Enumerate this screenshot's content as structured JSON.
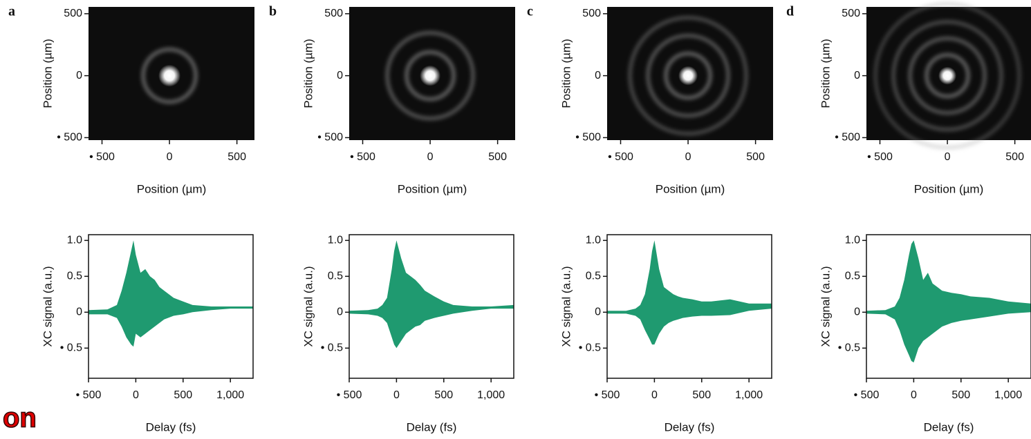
{
  "chart_data": [
    {
      "type": "image",
      "panel_label": "a",
      "xlabel": "Position (µm)",
      "ylabel": "Position (µm)",
      "xlim": [
        -600,
        630
      ],
      "ylim": [
        -520,
        555
      ],
      "xticks": [
        {
          "value": -500,
          "label": "• 500"
        },
        0,
        500
      ],
      "yticks": [
        {
          "value": -500,
          "label": "• 500"
        },
        0,
        500
      ]
    },
    {
      "type": "band",
      "xlabel": "Delay (fs)",
      "ylabel": "XC signal (a.u.)",
      "color": "#1f9a70",
      "xlim": [
        -500,
        1240
      ],
      "ylim": [
        -0.92,
        1.08
      ],
      "xticks": [
        {
          "value": -500,
          "label": "• 500"
        },
        0,
        500,
        {
          "value": 1000,
          "label": "1,000"
        }
      ],
      "yticks": [
        {
          "value": -0.5,
          "label": "• 0.5"
        },
        0,
        0.5,
        {
          "value": 1,
          "label": "1.0"
        }
      ],
      "x": [
        -500,
        -300,
        -200,
        -150,
        -100,
        -50,
        -25,
        0,
        50,
        100,
        150,
        200,
        250,
        300,
        400,
        500,
        600,
        800,
        1000,
        1240
      ],
      "upper": [
        0.03,
        0.04,
        0.1,
        0.3,
        0.55,
        0.85,
        1.0,
        0.8,
        0.55,
        0.6,
        0.5,
        0.45,
        0.35,
        0.3,
        0.2,
        0.15,
        0.1,
        0.08,
        0.08,
        0.08
      ],
      "lower": [
        -0.03,
        -0.03,
        -0.08,
        -0.2,
        -0.35,
        -0.45,
        -0.48,
        -0.3,
        -0.35,
        -0.3,
        -0.25,
        -0.2,
        -0.15,
        -0.1,
        -0.05,
        -0.03,
        0,
        0.03,
        0.05,
        0.05
      ]
    },
    {
      "type": "image",
      "panel_label": "b",
      "xlabel": "Position (µm)",
      "ylabel": "Position (µm)",
      "xlim": [
        -600,
        630
      ],
      "ylim": [
        -520,
        555
      ],
      "xticks": [
        {
          "value": -500,
          "label": "• 500"
        },
        0,
        500
      ],
      "yticks": [
        {
          "value": -500,
          "label": "• 500"
        },
        0,
        500
      ]
    },
    {
      "type": "band",
      "xlabel": "Delay (fs)",
      "ylabel": "XC signal (a.u.)",
      "color": "#1f9a70",
      "xlim": [
        -500,
        1240
      ],
      "ylim": [
        -0.92,
        1.08
      ],
      "xticks": [
        {
          "value": -500,
          "label": "• 500"
        },
        0,
        500,
        {
          "value": 1000,
          "label": "1,000"
        }
      ],
      "yticks": [
        {
          "value": -0.5,
          "label": "• 0.5"
        },
        0,
        0.5,
        {
          "value": 1,
          "label": "1.0"
        }
      ],
      "x": [
        -500,
        -300,
        -200,
        -150,
        -100,
        -50,
        -25,
        0,
        50,
        100,
        150,
        200,
        250,
        300,
        400,
        500,
        600,
        800,
        1000,
        1240
      ],
      "upper": [
        0.02,
        0.03,
        0.05,
        0.1,
        0.2,
        0.6,
        0.85,
        1.0,
        0.75,
        0.55,
        0.5,
        0.45,
        0.38,
        0.3,
        0.22,
        0.15,
        0.1,
        0.08,
        0.08,
        0.1
      ],
      "lower": [
        -0.02,
        -0.03,
        -0.05,
        -0.08,
        -0.15,
        -0.35,
        -0.45,
        -0.5,
        -0.4,
        -0.3,
        -0.25,
        -0.2,
        -0.18,
        -0.12,
        -0.08,
        -0.05,
        -0.02,
        0.02,
        0.05,
        0.05
      ]
    },
    {
      "type": "image",
      "panel_label": "c",
      "xlabel": "Position (µm)",
      "ylabel": "Position (µm)",
      "xlim": [
        -600,
        630
      ],
      "ylim": [
        -520,
        555
      ],
      "xticks": [
        {
          "value": -500,
          "label": "• 500"
        },
        0,
        500
      ],
      "yticks": [
        {
          "value": -500,
          "label": "• 500"
        },
        0,
        500
      ]
    },
    {
      "type": "band",
      "xlabel": "Delay (fs)",
      "ylabel": "XC signal (a.u.)",
      "color": "#1f9a70",
      "xlim": [
        -500,
        1240
      ],
      "ylim": [
        -0.92,
        1.08
      ],
      "xticks": [
        {
          "value": -500,
          "label": "• 500"
        },
        0,
        500,
        {
          "value": 1000,
          "label": "1,000"
        }
      ],
      "yticks": [
        {
          "value": -0.5,
          "label": "• 0.5"
        },
        0,
        0.5,
        {
          "value": 1,
          "label": "1.0"
        }
      ],
      "x": [
        -500,
        -300,
        -200,
        -150,
        -100,
        -50,
        -25,
        0,
        50,
        100,
        150,
        200,
        250,
        300,
        400,
        500,
        600,
        800,
        1000,
        1240
      ],
      "upper": [
        0.02,
        0.02,
        0.05,
        0.1,
        0.25,
        0.6,
        0.85,
        1.0,
        0.6,
        0.35,
        0.3,
        0.25,
        0.22,
        0.2,
        0.18,
        0.15,
        0.15,
        0.18,
        0.12,
        0.12
      ],
      "lower": [
        -0.02,
        -0.02,
        -0.05,
        -0.1,
        -0.25,
        -0.38,
        -0.45,
        -0.45,
        -0.3,
        -0.2,
        -0.15,
        -0.12,
        -0.1,
        -0.08,
        -0.06,
        -0.05,
        -0.05,
        -0.04,
        0.02,
        0.05
      ]
    },
    {
      "type": "image",
      "panel_label": "d",
      "xlabel": "Position (µm)",
      "ylabel": "Position (µm)",
      "xlim": [
        -600,
        630
      ],
      "ylim": [
        -520,
        555
      ],
      "xticks": [
        {
          "value": -500,
          "label": "• 500"
        },
        0,
        500
      ],
      "yticks": [
        {
          "value": -500,
          "label": "• 500"
        },
        0,
        500
      ]
    },
    {
      "type": "band",
      "xlabel": "Delay (fs)",
      "ylabel": "XC signal (a.u.)",
      "color": "#1f9a70",
      "xlim": [
        -500,
        1240
      ],
      "ylim": [
        -0.92,
        1.08
      ],
      "xticks": [
        {
          "value": -500,
          "label": "• 500"
        },
        0,
        500,
        {
          "value": 1000,
          "label": "1,000"
        }
      ],
      "yticks": [
        {
          "value": -0.5,
          "label": "• 0.5"
        },
        0,
        0.5,
        {
          "value": 1,
          "label": "1.0"
        }
      ],
      "x": [
        -500,
        -300,
        -200,
        -150,
        -100,
        -50,
        -25,
        0,
        50,
        100,
        150,
        200,
        250,
        300,
        400,
        500,
        600,
        800,
        1000,
        1240
      ],
      "upper": [
        0.02,
        0.03,
        0.08,
        0.2,
        0.45,
        0.8,
        0.95,
        1.0,
        0.75,
        0.45,
        0.55,
        0.4,
        0.35,
        0.3,
        0.27,
        0.25,
        0.22,
        0.2,
        0.15,
        0.12
      ],
      "lower": [
        -0.02,
        -0.03,
        -0.1,
        -0.25,
        -0.45,
        -0.6,
        -0.68,
        -0.7,
        -0.5,
        -0.4,
        -0.35,
        -0.3,
        -0.25,
        -0.2,
        -0.15,
        -0.12,
        -0.1,
        -0.06,
        -0.02,
        0
      ]
    }
  ],
  "overlay_text": "on"
}
